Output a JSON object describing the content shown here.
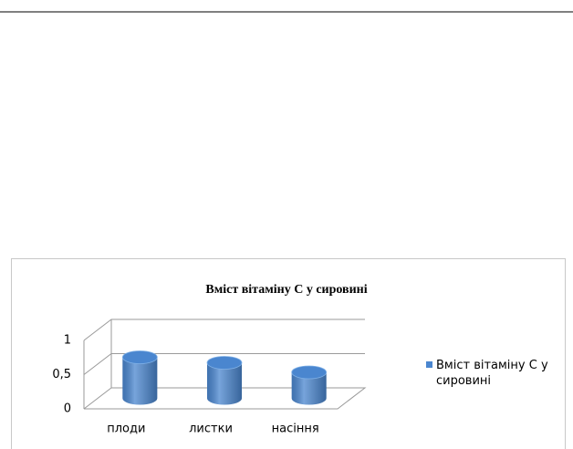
{
  "chart_data": {
    "type": "bar",
    "title": "Вміст вітаміну С у сировині",
    "categories": [
      "плоди",
      "листки",
      "насіння"
    ],
    "series": [
      {
        "name": "Вміст вітаміну С у сировині",
        "color": "#4a86cf",
        "values": [
          0.6,
          0.52,
          0.38
        ]
      }
    ],
    "ylim": [
      0,
      1
    ],
    "yticks": [
      0,
      {
        "value": 0.5,
        "label": "0,5"
      },
      1
    ],
    "grid": true,
    "legend": "right"
  }
}
